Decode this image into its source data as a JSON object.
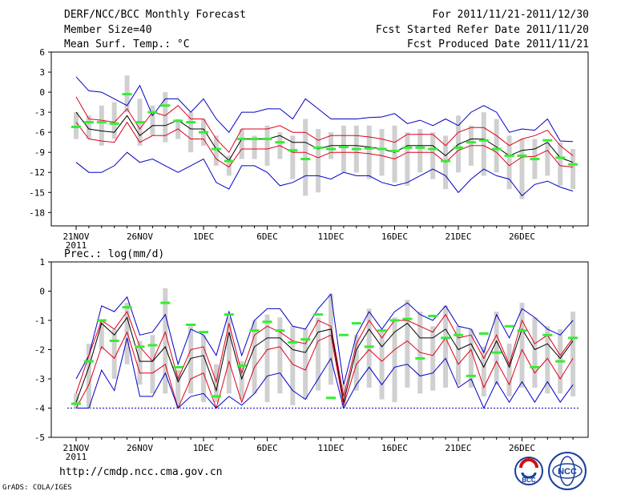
{
  "header": {
    "title": "DERF/NCC/BCC Monthly Forecast",
    "member_size": "Member Size=40",
    "variable": "Mean Surf. Temp.: °C",
    "period": "For 2011/11/21-2011/12/30",
    "started": "Fcst Started Refer Date 2011/11/20",
    "produced": "Fcst Produced Date 2011/11/21"
  },
  "footer": {
    "url": "http://cmdp.ncc.cma.gov.cn",
    "credit": "GrADS: COLA/IGES",
    "logo_bcc": "BCC",
    "logo_ncc": "NCC"
  },
  "colors": {
    "mean": "#000000",
    "spread": "#e0001b",
    "envelope": "#0000c8",
    "obs": "#33ee33",
    "box": "#d0d0d0",
    "baseline": "#0000c8"
  },
  "chart_data": [
    {
      "type": "line",
      "title": "Mean Surf. Temp.: °C",
      "x_tick_labels": [
        "21NOV",
        "26NOV",
        "1DEC",
        "6DEC",
        "11DEC",
        "16DEC",
        "21DEC",
        "26DEC"
      ],
      "x_year_label": "2011",
      "ylim": [
        -20,
        6
      ],
      "yticks": [
        6,
        3,
        0,
        -3,
        -6,
        -9,
        -12,
        -15,
        -18
      ],
      "days": 40,
      "series": [
        {
          "name": "max",
          "color": "#0000c8",
          "values": [
            2.3,
            0.2,
            0,
            -1,
            -2,
            1,
            -3.5,
            -1,
            -1,
            -3,
            -1,
            -4,
            -6,
            -3,
            -3,
            -2.5,
            -2.5,
            -4,
            -1,
            -2.5,
            -4,
            -4,
            -4,
            -3.8,
            -3.7,
            -3.2,
            -4.7,
            -4.2,
            -5,
            -4,
            -5,
            -3,
            -2,
            -3,
            -6,
            -5.5,
            -5.7,
            -4,
            -7.3,
            -7.4
          ]
        },
        {
          "name": "upper",
          "color": "#e0001b",
          "values": [
            -0.7,
            -4,
            -4.2,
            -4.5,
            -2.5,
            -5.5,
            -3,
            -3.5,
            -2,
            -4,
            -4,
            -7,
            -9,
            -5.5,
            -5.5,
            -5.5,
            -5,
            -6,
            -6,
            -7.2,
            -6.5,
            -6.5,
            -6.5,
            -6.7,
            -7,
            -7.5,
            -6.3,
            -6.3,
            -6.3,
            -8,
            -6,
            -5.3,
            -5.3,
            -6.5,
            -8,
            -7,
            -6.5,
            -5.7,
            -8,
            -9.5
          ]
        },
        {
          "name": "mean",
          "color": "#000000",
          "values": [
            -3,
            -5.5,
            -5.8,
            -6,
            -3.5,
            -6.5,
            -5,
            -5,
            -4.2,
            -5.5,
            -5.5,
            -8.5,
            -10.2,
            -7,
            -7,
            -7,
            -6.5,
            -7.5,
            -7.5,
            -8.5,
            -8,
            -8,
            -8,
            -8.2,
            -8.5,
            -9,
            -8,
            -8,
            -8,
            -9.5,
            -7.8,
            -7,
            -7,
            -8.2,
            -9.5,
            -8.7,
            -8.5,
            -7.5,
            -9.8,
            -10.5
          ]
        },
        {
          "name": "lower",
          "color": "#e0001b",
          "values": [
            -4.5,
            -7,
            -7.3,
            -7.5,
            -4.5,
            -7.5,
            -6.5,
            -6.5,
            -5.5,
            -7,
            -7,
            -10,
            -11.2,
            -8.5,
            -8.5,
            -8.5,
            -8,
            -9,
            -9,
            -9.8,
            -9,
            -9,
            -9,
            -9.2,
            -9.5,
            -10,
            -9,
            -9,
            -9,
            -10.5,
            -8.7,
            -8,
            -8,
            -9,
            -11,
            -9.7,
            -9.6,
            -8.7,
            -11,
            -11.2
          ]
        },
        {
          "name": "min",
          "color": "#0000c8",
          "values": [
            -10.5,
            -12,
            -12,
            -11,
            -9,
            -10.5,
            -10,
            -11,
            -12,
            -11,
            -10,
            -13.5,
            -14.5,
            -11,
            -11,
            -12,
            -14,
            -13.5,
            -12.5,
            -12.5,
            -13,
            -12,
            -12.5,
            -12.5,
            -13.5,
            -14,
            -13.5,
            -12.5,
            -11.5,
            -12.5,
            -15,
            -13,
            -11.5,
            -12.5,
            -13,
            -15.5,
            -13.8,
            -13.3,
            -14.2,
            -14.8
          ]
        }
      ],
      "boxes": [
        [
          -7,
          -3
        ],
        [
          -7,
          -3.5
        ],
        [
          -8,
          -2
        ],
        [
          -7,
          -1.5
        ],
        [
          -3,
          2.5
        ],
        [
          -8,
          -1
        ],
        [
          -6.5,
          -2
        ],
        [
          -7.5,
          0
        ],
        [
          -7,
          -4
        ],
        [
          -9,
          -3
        ],
        [
          -8,
          -4
        ],
        [
          -11,
          -6.5
        ],
        [
          -12.5,
          -9.5
        ],
        [
          -10,
          -5.5
        ],
        [
          -10,
          -6.5
        ],
        [
          -11,
          -5
        ],
        [
          -10,
          -6
        ],
        [
          -13,
          -6.5
        ],
        [
          -15.5,
          -4
        ],
        [
          -15,
          -5.5
        ],
        [
          -10,
          -6
        ],
        [
          -12,
          -5
        ],
        [
          -12,
          -5
        ],
        [
          -13,
          -5
        ],
        [
          -12.5,
          -5.5
        ],
        [
          -13.5,
          -5
        ],
        [
          -14,
          -6
        ],
        [
          -12,
          -5.5
        ],
        [
          -13,
          -6
        ],
        [
          -14.5,
          -6.5
        ],
        [
          -12,
          -3.5
        ],
        [
          -11,
          -5
        ],
        [
          -12.5,
          -3
        ],
        [
          -12,
          -4
        ],
        [
          -14.5,
          -6.5
        ],
        [
          -16,
          -7
        ],
        [
          -13,
          -7
        ],
        [
          -12.5,
          -7.5
        ],
        [
          -14,
          -7.5
        ],
        [
          -14.5,
          -8.5
        ]
      ],
      "observed": [
        -5.2,
        -4.5,
        -4.5,
        -4.7,
        -0.3,
        -4.5,
        -3,
        -2,
        -4.3,
        -4.5,
        -6,
        -8.5,
        -10.3,
        -7,
        -7,
        -7,
        -7.5,
        -8.7,
        -10,
        -8.3,
        -8.5,
        -8.2,
        -8.5,
        -8.4,
        -8.5,
        -8.8,
        -8.3,
        -8.3,
        -8.5,
        -10.3,
        -8.3,
        -7.5,
        -7.2,
        -8.5,
        -9.5,
        -9.5,
        -10,
        -7.2,
        -9.8,
        -10.8
      ]
    },
    {
      "type": "line",
      "title": "Prec.: log(mm/d)",
      "x_tick_labels": [
        "21NOV",
        "26NOV",
        "1DEC",
        "6DEC",
        "11DEC",
        "16DEC",
        "21DEC",
        "26DEC"
      ],
      "x_year_label": "2011",
      "ylim": [
        -5,
        1
      ],
      "yticks": [
        1,
        0,
        -1,
        -2,
        -3,
        -4,
        -5
      ],
      "baseline": -4,
      "days": 40,
      "series": [
        {
          "name": "max",
          "color": "#0000c8",
          "values": [
            -3,
            -2.2,
            -0.5,
            -0.7,
            -0.2,
            -1.5,
            -1.4,
            -0.8,
            -2.5,
            -1.3,
            -1.5,
            -2.2,
            -0.7,
            -2.2,
            -1,
            -0.6,
            -0.6,
            -1.2,
            -1.3,
            -0.6,
            -0.1,
            -3.2,
            -1.5,
            -0.7,
            -1.3,
            -0.7,
            -0.4,
            -0.8,
            -1,
            -0.5,
            -1.2,
            -1.3,
            -2.1,
            -0.8,
            -1.6,
            -0.6,
            -0.9,
            -1.3,
            -1.5,
            -1
          ]
        },
        {
          "name": "upper",
          "color": "#e0001b",
          "values": [
            -3.5,
            -2.2,
            -1,
            -1.3,
            -0.7,
            -1.9,
            -2.4,
            -1.4,
            -3,
            -2,
            -1.9,
            -3.1,
            -1.1,
            -2.8,
            -1.5,
            -1.2,
            -1.4,
            -1.7,
            -1.8,
            -1,
            -1.2,
            -3.6,
            -1.8,
            -1,
            -1.6,
            -1,
            -1,
            -1.2,
            -1.4,
            -0.8,
            -1.6,
            -1.5,
            -2.3,
            -1.5,
            -2.5,
            -1,
            -1.8,
            -1.5,
            -2.2,
            -1.6
          ]
        },
        {
          "name": "mean",
          "color": "#000000",
          "values": [
            -3.8,
            -2.6,
            -1.1,
            -1.5,
            -0.9,
            -2.4,
            -2.4,
            -1.9,
            -3.1,
            -2.3,
            -2.2,
            -3.4,
            -1.4,
            -3,
            -1.9,
            -1.6,
            -1.6,
            -2,
            -2.1,
            -1.4,
            -1.3,
            -3.8,
            -2,
            -1.3,
            -1.9,
            -1.4,
            -1.1,
            -1.6,
            -1.6,
            -1.3,
            -2,
            -1.8,
            -2.6,
            -1.7,
            -2.6,
            -1.3,
            -2,
            -1.8,
            -2.3,
            -1.7
          ]
        },
        {
          "name": "lower",
          "color": "#e0001b",
          "values": [
            -4,
            -3.2,
            -1.9,
            -2.3,
            -1.4,
            -2.8,
            -2.8,
            -2.5,
            -4,
            -3,
            -2.8,
            -4,
            -2.4,
            -3.8,
            -2.6,
            -2,
            -1.9,
            -2.5,
            -2.7,
            -1.7,
            -1.5,
            -3.9,
            -2.5,
            -2,
            -2.4,
            -2,
            -1.7,
            -2.1,
            -2.2,
            -1.6,
            -2.5,
            -2,
            -3.3,
            -2.4,
            -3.2,
            -2,
            -2.8,
            -2.3,
            -3,
            -2.3
          ]
        },
        {
          "name": "min",
          "color": "#0000c8",
          "values": [
            -4,
            -4,
            -2.7,
            -3.4,
            -1.6,
            -3.6,
            -3.6,
            -2.8,
            -4,
            -3.6,
            -3.5,
            -4,
            -3.6,
            -3.9,
            -3.5,
            -2.9,
            -2.8,
            -3.4,
            -3.7,
            -3,
            -2.3,
            -4,
            -3.2,
            -2.6,
            -3.2,
            -2.6,
            -2.5,
            -2.9,
            -2.8,
            -2.3,
            -3.3,
            -3,
            -4,
            -3.1,
            -3.8,
            -3.1,
            -3.8,
            -3.1,
            -3.8,
            -3.2
          ]
        }
      ],
      "boxes": [
        [
          -4,
          -3.5
        ],
        [
          -4,
          -1.8
        ],
        [
          -2,
          -1
        ],
        [
          -3,
          -1.3
        ],
        [
          -2.5,
          -0.4
        ],
        [
          -3.2,
          -1.7
        ],
        [
          -3.5,
          -1.5
        ],
        [
          -3.5,
          0.1
        ],
        [
          -4,
          -2.7
        ],
        [
          -3.5,
          -1.2
        ],
        [
          -3.8,
          -1.5
        ],
        [
          -3.8,
          -2.5
        ],
        [
          -3.5,
          -0.9
        ],
        [
          -3.7,
          -2.4
        ],
        [
          -3.5,
          -1
        ],
        [
          -3.8,
          -0.8
        ],
        [
          -3.5,
          -0.9
        ],
        [
          -3.9,
          -1.2
        ],
        [
          -3.7,
          -1.3
        ],
        [
          -3.4,
          -0.9
        ],
        [
          -3.2,
          -0.1
        ],
        [
          -4,
          -3.2
        ],
        [
          -3.4,
          -1.5
        ],
        [
          -3.3,
          -0.6
        ],
        [
          -3.7,
          -1.3
        ],
        [
          -3.8,
          -0.9
        ],
        [
          -3.3,
          -0.3
        ],
        [
          -3.5,
          -0.7
        ],
        [
          -3.4,
          -1.2
        ],
        [
          -3.3,
          -0.5
        ],
        [
          -3.2,
          -1.2
        ],
        [
          -3.3,
          -1.3
        ],
        [
          -3.6,
          -1.9
        ],
        [
          -3.2,
          -0.7
        ],
        [
          -3.6,
          -1.8
        ],
        [
          -3.3,
          -0.4
        ],
        [
          -3.3,
          -0.9
        ],
        [
          -3.5,
          -1.2
        ],
        [
          -3.5,
          -1.3
        ],
        [
          -3.6,
          -0.7
        ]
      ],
      "observed": [
        -3.85,
        -2.4,
        -1,
        -1.7,
        -0.55,
        -1.9,
        -1.85,
        -0.4,
        -2.6,
        -1.15,
        -1.4,
        -3.6,
        -0.8,
        -2.55,
        -1.35,
        -1.05,
        -1.35,
        -1.75,
        -1.65,
        -0.8,
        -3.65,
        -1.5,
        -1.1,
        -1.9,
        -1.35,
        -1,
        -0.95,
        -2.3,
        -0.85,
        -1.6,
        -1.5,
        -2.9,
        -1.45,
        -2.1,
        -1.2,
        -1.35,
        -2.6,
        -1.5,
        -2.4,
        -1.6
      ]
    }
  ]
}
